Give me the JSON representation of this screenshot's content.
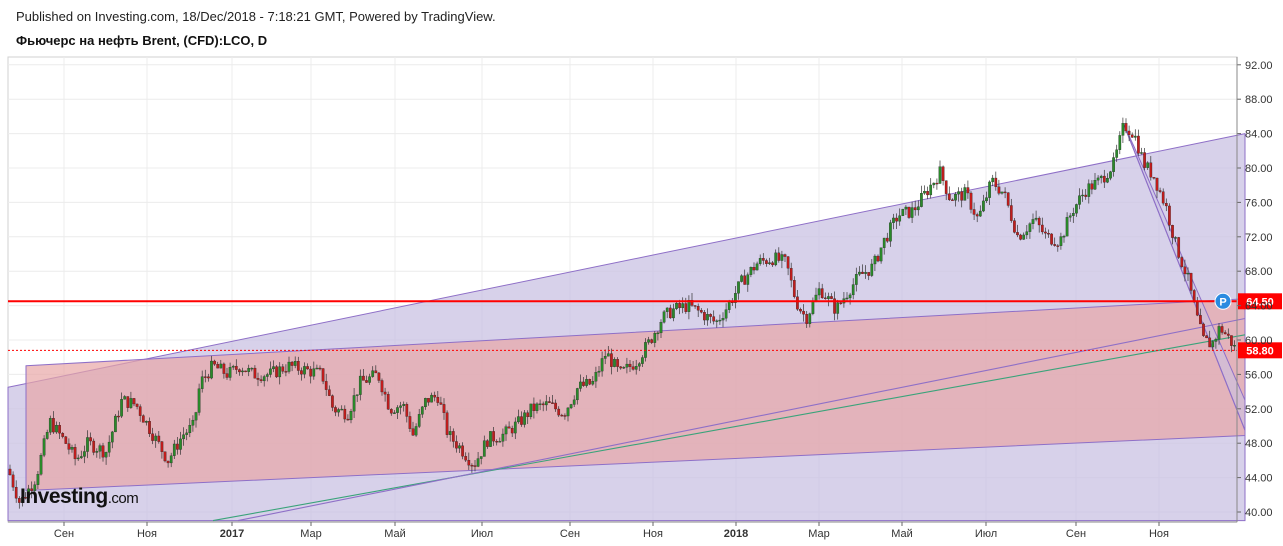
{
  "header": {
    "published": "Published on Investing.com, 18/Dec/2018 - 7:18:21 GMT, Powered by TradingView.",
    "title": "Фьючерс на нефть Brent, (CFD):LCO, D"
  },
  "logo": {
    "text": "Investing",
    "suffix": ".com"
  },
  "colors": {
    "bull": "#2a8a2a",
    "bear": "#c11d1d",
    "channel_purple": "#c9c1e3",
    "channel_pink": "#e8a6a6",
    "resistance": "#ff0000",
    "current_price": "#ff0000",
    "trendline_green": "#3aa37a",
    "marker": "#2a8be0"
  },
  "chart_data": {
    "type": "candlestick",
    "title": "Фьючерс на нефть Brent, (CFD):LCO, D",
    "ylim": [
      39,
      93
    ],
    "y_ticks": [
      "92.00",
      "88.00",
      "84.00",
      "80.00",
      "76.00",
      "72.00",
      "68.00",
      "64.00",
      "60.00",
      "56.00",
      "52.00",
      "48.00",
      "44.00",
      "40.00"
    ],
    "x_ticks": [
      {
        "label": "Сен",
        "bold": false
      },
      {
        "label": "Ноя",
        "bold": false
      },
      {
        "label": "2017",
        "bold": true
      },
      {
        "label": "Мар",
        "bold": false
      },
      {
        "label": "Май",
        "bold": false
      },
      {
        "label": "Июл",
        "bold": false
      },
      {
        "label": "Сен",
        "bold": false
      },
      {
        "label": "Ноя",
        "bold": false
      },
      {
        "label": "2018",
        "bold": true
      },
      {
        "label": "Мар",
        "bold": false
      },
      {
        "label": "Май",
        "bold": false
      },
      {
        "label": "Июл",
        "bold": false
      },
      {
        "label": "Сен",
        "bold": false
      },
      {
        "label": "Ноя",
        "bold": false
      }
    ],
    "price_path": [
      [
        0,
        45.0
      ],
      [
        12,
        41.0
      ],
      [
        28,
        44.0
      ],
      [
        42,
        50.5
      ],
      [
        58,
        48.0
      ],
      [
        68,
        46.0
      ],
      [
        80,
        48.0
      ],
      [
        98,
        47.0
      ],
      [
        114,
        53.0
      ],
      [
        128,
        52.5
      ],
      [
        145,
        49.0
      ],
      [
        160,
        46.0
      ],
      [
        175,
        49.0
      ],
      [
        186,
        50.0
      ],
      [
        192,
        55.0
      ],
      [
        205,
        57.0
      ],
      [
        220,
        56.0
      ],
      [
        232,
        57.0
      ],
      [
        245,
        56.0
      ],
      [
        262,
        56.0
      ],
      [
        280,
        57.0
      ],
      [
        298,
        56.5
      ],
      [
        314,
        56.0
      ],
      [
        325,
        52.0
      ],
      [
        340,
        51.5
      ],
      [
        352,
        55.0
      ],
      [
        370,
        56.0
      ],
      [
        382,
        52.0
      ],
      [
        395,
        52.5
      ],
      [
        405,
        49.0
      ],
      [
        418,
        53.0
      ],
      [
        430,
        53.5
      ],
      [
        440,
        49.0
      ],
      [
        452,
        47.5
      ],
      [
        466,
        45.5
      ],
      [
        480,
        48.5
      ],
      [
        496,
        49.0
      ],
      [
        512,
        50.5
      ],
      [
        524,
        52.0
      ],
      [
        540,
        52.5
      ],
      [
        556,
        51.5
      ],
      [
        570,
        54.5
      ],
      [
        585,
        55.0
      ],
      [
        598,
        58.5
      ],
      [
        612,
        56.0
      ],
      [
        628,
        57.5
      ],
      [
        640,
        59.5
      ],
      [
        654,
        62.5
      ],
      [
        665,
        63.5
      ],
      [
        680,
        64.0
      ],
      [
        695,
        63.0
      ],
      [
        708,
        62.0
      ],
      [
        720,
        64.0
      ],
      [
        735,
        67.0
      ],
      [
        750,
        69.0
      ],
      [
        765,
        69.5
      ],
      [
        778,
        69.0
      ],
      [
        788,
        64.5
      ],
      [
        798,
        62.5
      ],
      [
        812,
        66.0
      ],
      [
        828,
        63.5
      ],
      [
        842,
        66.0
      ],
      [
        852,
        67.5
      ],
      [
        865,
        68.5
      ],
      [
        876,
        71.5
      ],
      [
        890,
        74.5
      ],
      [
        905,
        75.0
      ],
      [
        920,
        77.5
      ],
      [
        932,
        79.5
      ],
      [
        942,
        76.5
      ],
      [
        958,
        77.0
      ],
      [
        970,
        74.0
      ],
      [
        984,
        78.5
      ],
      [
        996,
        77.0
      ],
      [
        1010,
        72.0
      ],
      [
        1026,
        74.0
      ],
      [
        1038,
        72.0
      ],
      [
        1052,
        71.5
      ],
      [
        1064,
        75.0
      ],
      [
        1078,
        77.5
      ],
      [
        1092,
        78.5
      ],
      [
        1106,
        80.5
      ],
      [
        1116,
        85.0
      ],
      [
        1126,
        84.0
      ],
      [
        1136,
        80.5
      ],
      [
        1146,
        79.0
      ],
      [
        1158,
        75.5
      ],
      [
        1168,
        71.0
      ],
      [
        1180,
        67.0
      ],
      [
        1188,
        63.0
      ],
      [
        1195,
        60.0
      ],
      [
        1204,
        59.5
      ],
      [
        1212,
        61.5
      ],
      [
        1222,
        60.0
      ],
      [
        1228,
        58.8
      ]
    ],
    "levels": [
      {
        "name": "resistance",
        "value": 64.5,
        "label": "64.50"
      },
      {
        "name": "current-price",
        "value": 58.8,
        "label": "58.80"
      }
    ],
    "channels": [
      {
        "name": "upper-channel-purple",
        "top_start": [
          0,
          54.5
        ],
        "top_end": [
          1237,
          84.0
        ],
        "bottom_start": [
          0,
          39.0
        ],
        "bottom_end": [
          1237,
          39.0
        ]
      },
      {
        "name": "lower-channel-pink",
        "top_start": [
          18,
          57.0
        ],
        "top_end": [
          1237,
          64.8
        ],
        "bottom_start": [
          18,
          42.5
        ],
        "bottom_end": [
          1237,
          48.9
        ]
      }
    ],
    "trendlines": [
      {
        "name": "green-trendline",
        "start": [
          205,
          39.0
        ],
        "end": [
          1237,
          60.6
        ]
      },
      {
        "name": "purple-trendline-lower",
        "start": [
          230,
          39.0
        ],
        "end": [
          1237,
          62.5
        ]
      },
      {
        "name": "descending-wedge-line",
        "start": [
          1116,
          85.0
        ],
        "end": [
          1237,
          49.5
        ]
      }
    ],
    "marker": {
      "label": "P",
      "x": 1215,
      "value": 64.5
    }
  }
}
